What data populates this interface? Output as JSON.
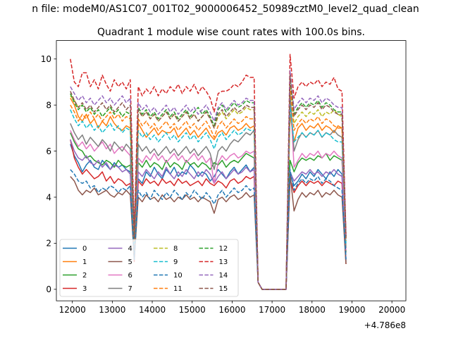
{
  "suptitle": "n file: modeM0/AS1C07_001T02_9000006452_50989cztM0_level2_quad_clean",
  "chart_data": {
    "type": "line",
    "title": "Quadrant 1 module wise count rates with 100.0s bins.",
    "xlabel": "",
    "ylabel": "",
    "x_offset_label": "+4.786e8",
    "xlim": [
      11600,
      20350
    ],
    "ylim": [
      -0.5,
      10.8
    ],
    "xticks": [
      12000,
      13000,
      14000,
      15000,
      16000,
      17000,
      18000,
      19000,
      20000
    ],
    "yticks": [
      0,
      2,
      4,
      6,
      8,
      10
    ],
    "grid": false,
    "legend": {
      "placement": "lower-left",
      "columns": 4
    },
    "x_start": 11950,
    "x_step": 100,
    "series": [
      {
        "name": "0",
        "color": "#1f77b4",
        "dash": "solid",
        "values": [
          6.3,
          5.8,
          5.5,
          5.1,
          5.4,
          5.6,
          5.3,
          5.2,
          5.6,
          5.4,
          5.2,
          5.5,
          5.3,
          5.4,
          5.2,
          5.1,
          1.4,
          4.8,
          4.6,
          5.1,
          4.9,
          5.3,
          5.0,
          4.8,
          5.2,
          5.0,
          5.3,
          4.9,
          5.1,
          5.0,
          5.4,
          5.2,
          4.9,
          5.1,
          5.0,
          4.7,
          4.9,
          5.2,
          5.0,
          4.8,
          5.1,
          5.3,
          5.0,
          5.2,
          5.4,
          5.1,
          5.3,
          0.3,
          0.0,
          0.0,
          0.0,
          0.0,
          0.0,
          0.0,
          0.0,
          5.0,
          4.5,
          4.7,
          5.0,
          4.8,
          5.1,
          4.9,
          5.2,
          5.0,
          4.8,
          5.1,
          4.9,
          5.2,
          5.0,
          1.2
        ]
      },
      {
        "name": "1",
        "color": "#ff7f0e",
        "dash": "solid",
        "values": [
          8.3,
          8.0,
          7.5,
          7.3,
          7.6,
          7.2,
          7.4,
          7.0,
          7.3,
          7.1,
          7.5,
          7.2,
          7.0,
          6.9,
          7.1,
          7.0,
          2.1,
          7.2,
          6.9,
          6.6,
          6.8,
          7.0,
          6.7,
          6.9,
          6.8,
          6.8,
          7.0,
          6.6,
          6.8,
          7.0,
          6.7,
          6.9,
          6.6,
          6.8,
          7.0,
          6.7,
          6.5,
          6.8,
          6.9,
          6.7,
          7.0,
          7.1,
          6.9,
          7.0,
          7.2,
          7.0,
          7.1,
          0.3,
          0.0,
          0.0,
          0.0,
          0.0,
          0.0,
          0.0,
          0.0,
          7.6,
          6.4,
          7.0,
          7.2,
          6.9,
          7.1,
          7.0,
          7.2,
          6.9,
          7.1,
          7.0,
          6.8,
          7.1,
          7.0,
          2.3
        ]
      },
      {
        "name": "2",
        "color": "#2ca02c",
        "dash": "solid",
        "values": [
          6.8,
          6.4,
          6.1,
          6.0,
          5.7,
          5.8,
          5.6,
          5.5,
          5.4,
          5.6,
          5.5,
          5.3,
          5.6,
          5.4,
          5.3,
          5.4,
          1.5,
          5.5,
          5.3,
          5.6,
          5.3,
          5.5,
          5.4,
          5.2,
          5.6,
          5.3,
          5.5,
          5.4,
          5.2,
          5.6,
          5.4,
          5.5,
          5.3,
          5.5,
          5.4,
          5.2,
          5.5,
          5.4,
          5.6,
          5.3,
          5.5,
          5.6,
          5.5,
          5.7,
          5.9,
          5.8,
          5.7,
          0.3,
          0.0,
          0.0,
          0.0,
          0.0,
          0.0,
          0.0,
          0.0,
          5.6,
          5.1,
          5.5,
          5.7,
          5.6,
          5.7,
          5.6,
          5.8,
          5.7,
          5.9,
          5.6,
          5.8,
          5.7,
          5.6,
          1.6
        ]
      },
      {
        "name": "3",
        "color": "#d62728",
        "dash": "solid",
        "values": [
          6.5,
          5.7,
          5.3,
          5.0,
          5.2,
          5.0,
          4.8,
          4.9,
          5.1,
          4.7,
          4.9,
          4.6,
          4.8,
          4.7,
          4.5,
          4.6,
          1.2,
          4.7,
          4.5,
          4.8,
          4.6,
          4.7,
          4.5,
          4.8,
          4.6,
          4.7,
          4.5,
          4.8,
          4.6,
          4.7,
          4.5,
          4.6,
          4.7,
          4.5,
          4.8,
          4.6,
          4.5,
          4.7,
          4.6,
          4.4,
          4.7,
          4.8,
          4.6,
          4.7,
          4.9,
          4.8,
          4.9,
          0.3,
          0.0,
          0.0,
          0.0,
          0.0,
          0.0,
          0.0,
          0.0,
          4.8,
          4.2,
          4.5,
          4.7,
          4.5,
          4.7,
          4.6,
          4.7,
          4.5,
          4.7,
          4.6,
          4.5,
          4.7,
          4.6,
          1.1
        ]
      },
      {
        "name": "4",
        "color": "#9467bd",
        "dash": "solid",
        "values": [
          6.5,
          6.0,
          5.7,
          5.6,
          5.8,
          5.5,
          5.4,
          5.6,
          5.3,
          5.5,
          5.2,
          5.4,
          5.3,
          5.1,
          5.2,
          5.0,
          1.3,
          5.1,
          4.9,
          5.2,
          5.0,
          4.8,
          5.1,
          4.9,
          5.3,
          5.0,
          4.8,
          5.1,
          4.9,
          5.2,
          5.0,
          4.8,
          5.1,
          4.9,
          5.2,
          5.0,
          4.6,
          4.9,
          5.1,
          4.8,
          5.0,
          5.2,
          5.0,
          5.1,
          5.3,
          5.1,
          5.2,
          0.3,
          0.0,
          0.0,
          0.0,
          0.0,
          0.0,
          0.0,
          0.0,
          5.1,
          4.7,
          4.9,
          5.1,
          5.0,
          5.2,
          5.0,
          5.1,
          4.9,
          5.1,
          5.0,
          5.2,
          5.0,
          4.9,
          1.3
        ]
      },
      {
        "name": "5",
        "color": "#8c564b",
        "dash": "solid",
        "values": [
          4.9,
          4.7,
          4.3,
          4.1,
          4.3,
          4.2,
          4.4,
          4.1,
          4.2,
          4.3,
          4.1,
          4.0,
          4.2,
          4.1,
          4.3,
          4.1,
          1.3,
          4.0,
          3.8,
          4.1,
          3.9,
          4.0,
          3.8,
          4.1,
          3.9,
          4.0,
          3.8,
          4.0,
          3.9,
          4.1,
          3.9,
          4.0,
          3.8,
          4.0,
          3.9,
          3.8,
          3.3,
          3.9,
          4.0,
          3.8,
          4.0,
          4.1,
          3.9,
          4.0,
          4.2,
          4.0,
          4.1,
          0.3,
          0.0,
          0.0,
          0.0,
          0.0,
          0.0,
          0.0,
          0.0,
          5.0,
          3.4,
          3.9,
          4.2,
          4.0,
          4.2,
          4.1,
          4.3,
          4.0,
          4.2,
          4.1,
          4.3,
          4.1,
          4.0,
          1.1
        ]
      },
      {
        "name": "6",
        "color": "#e377c2",
        "dash": "solid",
        "values": [
          6.9,
          6.5,
          6.2,
          6.4,
          6.1,
          6.3,
          6.0,
          6.2,
          6.4,
          6.1,
          6.3,
          5.9,
          6.1,
          6.2,
          6.0,
          5.8,
          1.6,
          5.7,
          5.5,
          5.8,
          5.6,
          5.9,
          5.6,
          5.8,
          5.5,
          5.7,
          5.9,
          5.6,
          5.8,
          5.5,
          5.7,
          5.9,
          5.6,
          5.8,
          5.5,
          5.7,
          4.6,
          5.5,
          5.8,
          5.6,
          5.8,
          5.9,
          5.7,
          5.8,
          6.0,
          5.9,
          6.0,
          0.3,
          0.0,
          0.0,
          0.0,
          0.0,
          0.0,
          0.0,
          0.0,
          8.5,
          5.3,
          5.6,
          5.9,
          5.7,
          5.9,
          5.8,
          6.0,
          5.7,
          5.9,
          5.8,
          6.0,
          5.8,
          5.7,
          1.7
        ]
      },
      {
        "name": "7",
        "color": "#7f7f7f",
        "dash": "solid",
        "values": [
          7.2,
          6.8,
          6.5,
          6.7,
          6.3,
          6.6,
          6.4,
          6.2,
          6.5,
          6.3,
          6.0,
          6.4,
          6.2,
          6.0,
          6.3,
          6.1,
          1.5,
          6.3,
          6.0,
          6.2,
          5.9,
          6.1,
          5.8,
          6.0,
          6.2,
          5.9,
          6.1,
          5.8,
          6.0,
          6.2,
          5.9,
          6.1,
          5.8,
          6.0,
          6.2,
          5.9,
          5.2,
          6.0,
          6.2,
          6.0,
          6.3,
          6.5,
          6.4,
          6.6,
          6.8,
          6.7,
          6.9,
          0.3,
          0.0,
          0.0,
          0.0,
          0.0,
          0.0,
          0.0,
          0.0,
          8.5,
          6.0,
          6.5,
          6.8,
          6.6,
          6.8,
          6.7,
          6.9,
          6.6,
          6.8,
          6.7,
          6.9,
          6.7,
          6.6,
          1.8
        ]
      },
      {
        "name": "8",
        "color": "#bcbd22",
        "dash": "dashed",
        "values": [
          8.4,
          8.2,
          7.9,
          8.0,
          7.7,
          7.9,
          7.6,
          7.8,
          7.5,
          7.7,
          7.9,
          7.6,
          7.8,
          7.5,
          7.7,
          7.6,
          2.2,
          7.8,
          7.5,
          7.7,
          7.4,
          7.6,
          7.3,
          7.5,
          7.7,
          7.4,
          7.6,
          7.3,
          7.5,
          7.7,
          7.4,
          7.6,
          7.3,
          7.5,
          7.7,
          7.4,
          7.0,
          7.5,
          7.7,
          7.4,
          7.6,
          7.8,
          7.6,
          7.7,
          7.9,
          7.8,
          7.8,
          0.3,
          0.0,
          0.0,
          0.0,
          0.0,
          0.0,
          0.0,
          0.0,
          9.0,
          7.2,
          7.5,
          7.7,
          7.5,
          7.7,
          7.6,
          7.8,
          7.5,
          7.7,
          7.6,
          7.8,
          7.6,
          7.5,
          2.2
        ]
      },
      {
        "name": "9",
        "color": "#17becf",
        "dash": "dashed",
        "values": [
          7.8,
          7.4,
          7.1,
          7.3,
          7.0,
          7.2,
          6.9,
          7.1,
          6.8,
          7.0,
          7.2,
          6.9,
          7.1,
          6.8,
          7.0,
          6.9,
          2.0,
          6.9,
          6.6,
          6.8,
          6.5,
          6.7,
          6.4,
          6.6,
          6.8,
          6.5,
          6.7,
          6.4,
          6.6,
          6.8,
          6.5,
          6.7,
          6.4,
          6.6,
          6.8,
          6.5,
          6.1,
          6.6,
          6.8,
          6.5,
          6.7,
          6.9,
          6.7,
          6.8,
          7.0,
          6.9,
          6.9,
          0.3,
          0.0,
          0.0,
          0.0,
          0.0,
          0.0,
          0.0,
          0.0,
          8.0,
          6.4,
          6.6,
          6.8,
          6.6,
          6.8,
          6.7,
          6.9,
          6.6,
          6.8,
          6.7,
          6.5,
          6.4,
          6.4,
          2.0
        ]
      },
      {
        "name": "10",
        "color": "#1f77b4",
        "dash": "dashed",
        "values": [
          5.2,
          5.0,
          4.7,
          4.6,
          4.7,
          4.4,
          4.5,
          4.2,
          4.4,
          4.3,
          4.5,
          4.4,
          4.2,
          4.4,
          4.3,
          4.5,
          1.3,
          4.3,
          4.0,
          4.2,
          3.9,
          4.3,
          4.1,
          3.9,
          4.2,
          4.0,
          4.3,
          4.1,
          3.9,
          4.2,
          4.0,
          4.3,
          4.1,
          3.9,
          4.2,
          4.0,
          3.7,
          4.1,
          4.3,
          4.0,
          4.2,
          4.4,
          4.2,
          4.3,
          4.5,
          4.3,
          4.4,
          0.3,
          0.0,
          0.0,
          0.0,
          0.0,
          0.0,
          0.0,
          0.0,
          5.2,
          4.3,
          4.6,
          4.8,
          4.6,
          4.8,
          4.7,
          4.9,
          4.6,
          4.8,
          4.7,
          4.5,
          4.4,
          4.3,
          1.3
        ]
      },
      {
        "name": "11",
        "color": "#ff7f0e",
        "dash": "dashed",
        "values": [
          8.0,
          7.7,
          7.3,
          7.6,
          7.4,
          7.7,
          7.4,
          7.6,
          7.3,
          7.5,
          7.7,
          7.4,
          7.6,
          7.3,
          7.5,
          7.4,
          2.1,
          7.4,
          7.1,
          7.3,
          7.0,
          7.2,
          6.9,
          7.1,
          7.3,
          7.0,
          7.2,
          6.9,
          7.1,
          7.3,
          7.0,
          7.2,
          6.9,
          7.1,
          7.3,
          7.0,
          6.6,
          7.1,
          7.3,
          7.0,
          7.2,
          7.4,
          7.2,
          7.3,
          7.5,
          7.4,
          7.4,
          0.3,
          0.0,
          0.0,
          0.0,
          0.0,
          0.0,
          0.0,
          0.0,
          8.9,
          6.9,
          7.2,
          7.4,
          7.2,
          7.4,
          7.3,
          7.5,
          7.2,
          7.4,
          7.3,
          7.1,
          7.0,
          7.0,
          2.1
        ]
      },
      {
        "name": "12",
        "color": "#2ca02c",
        "dash": "dashed",
        "values": [
          8.5,
          8.1,
          7.8,
          8.0,
          7.7,
          7.9,
          7.6,
          7.8,
          7.5,
          7.7,
          7.9,
          7.6,
          7.8,
          7.5,
          7.7,
          7.6,
          2.2,
          7.9,
          7.6,
          7.8,
          7.5,
          7.7,
          7.4,
          7.6,
          7.8,
          7.5,
          7.7,
          7.4,
          7.6,
          7.8,
          7.5,
          7.7,
          7.9,
          7.6,
          7.8,
          7.5,
          7.1,
          7.8,
          8.0,
          7.7,
          7.9,
          8.1,
          7.9,
          8.0,
          8.2,
          8.1,
          8.1,
          0.3,
          0.0,
          0.0,
          0.0,
          0.0,
          0.0,
          0.0,
          0.0,
          9.2,
          7.6,
          7.9,
          8.1,
          7.9,
          8.1,
          8.0,
          8.2,
          7.9,
          8.1,
          8.0,
          7.8,
          7.7,
          7.7,
          2.3
        ]
      },
      {
        "name": "13",
        "color": "#d62728",
        "dash": "dashed",
        "values": [
          10.0,
          9.0,
          8.8,
          9.4,
          9.4,
          8.8,
          9.1,
          8.7,
          9.3,
          8.9,
          8.6,
          9.1,
          8.8,
          9.0,
          8.7,
          9.1,
          2.6,
          8.8,
          8.4,
          8.7,
          8.5,
          8.8,
          8.4,
          8.7,
          8.5,
          8.8,
          8.6,
          8.9,
          8.5,
          8.8,
          8.6,
          8.9,
          8.5,
          8.8,
          8.6,
          8.3,
          7.7,
          8.5,
          8.6,
          8.6,
          8.7,
          8.9,
          8.8,
          9.0,
          9.3,
          9.2,
          9.2,
          0.3,
          0.0,
          0.0,
          0.0,
          0.0,
          0.0,
          0.0,
          0.0,
          10.2,
          8.3,
          8.8,
          9.0,
          8.8,
          9.0,
          8.9,
          9.1,
          8.8,
          9.0,
          8.9,
          9.2,
          8.7,
          8.6,
          2.4
        ]
      },
      {
        "name": "14",
        "color": "#9467bd",
        "dash": "dashed",
        "values": [
          8.8,
          8.5,
          8.2,
          8.4,
          8.1,
          8.3,
          8.0,
          8.2,
          8.4,
          8.1,
          8.3,
          8.0,
          8.2,
          8.4,
          8.1,
          8.3,
          2.3,
          8.1,
          7.8,
          8.0,
          7.7,
          7.9,
          7.6,
          7.8,
          8.0,
          7.7,
          7.9,
          7.6,
          7.8,
          8.0,
          7.7,
          7.9,
          7.6,
          7.8,
          8.0,
          7.7,
          7.3,
          7.9,
          8.1,
          7.8,
          8.0,
          8.2,
          8.0,
          8.1,
          8.3,
          8.2,
          8.2,
          0.3,
          0.0,
          0.0,
          0.0,
          0.0,
          0.0,
          0.0,
          0.0,
          9.5,
          7.8,
          8.1,
          8.3,
          8.1,
          8.3,
          8.2,
          8.4,
          8.1,
          8.3,
          8.2,
          8.0,
          7.9,
          7.9,
          2.3
        ]
      },
      {
        "name": "15",
        "color": "#8c564b",
        "dash": "dashed",
        "values": [
          8.6,
          8.2,
          7.9,
          8.1,
          7.8,
          8.0,
          7.7,
          7.9,
          8.1,
          7.8,
          8.0,
          7.7,
          7.9,
          8.1,
          7.8,
          8.0,
          2.2,
          7.8,
          7.5,
          7.7,
          7.4,
          7.6,
          7.3,
          7.5,
          7.7,
          7.4,
          7.6,
          7.3,
          7.5,
          7.7,
          7.4,
          7.6,
          7.3,
          7.5,
          7.7,
          7.4,
          7.0,
          7.6,
          7.8,
          7.5,
          7.7,
          7.9,
          7.7,
          7.8,
          8.0,
          7.9,
          7.9,
          0.3,
          0.0,
          0.0,
          0.0,
          0.0,
          0.0,
          0.0,
          0.0,
          9.3,
          7.5,
          7.8,
          8.0,
          7.8,
          8.0,
          7.9,
          8.1,
          7.8,
          8.0,
          7.9,
          7.7,
          7.6,
          7.6,
          2.2
        ]
      }
    ]
  }
}
